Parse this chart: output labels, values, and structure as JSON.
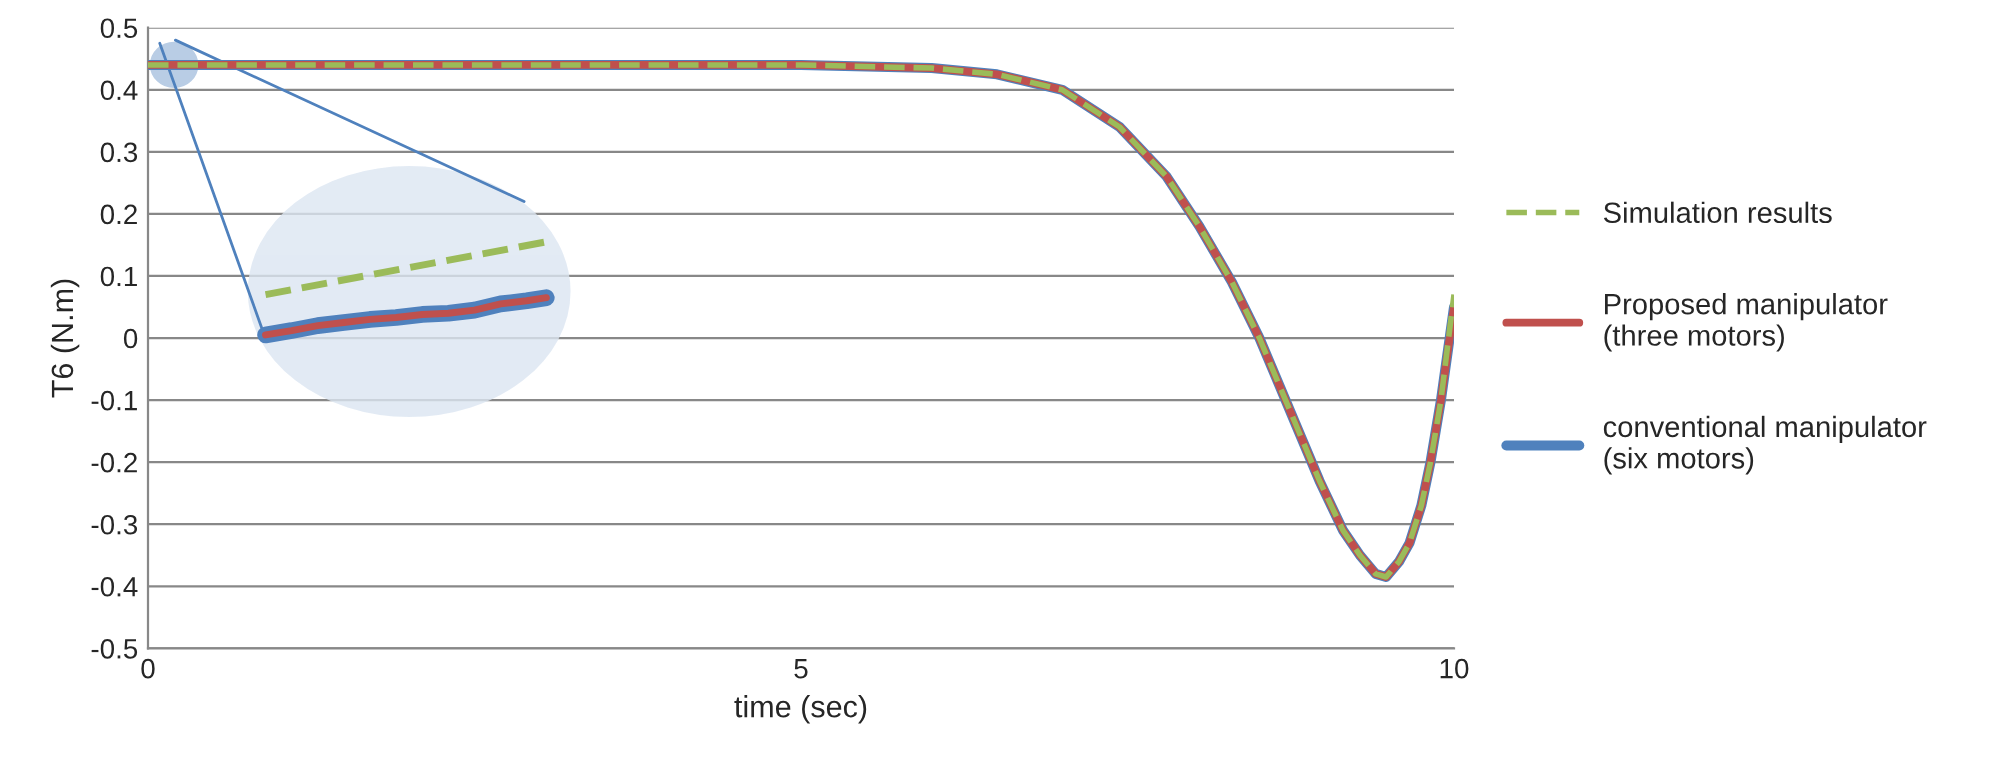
{
  "chart_data": {
    "type": "line",
    "xlabel": "time (sec)",
    "ylabel": "T6 (N.m)",
    "x": [
      0,
      2,
      4,
      5,
      6,
      6.5,
      7,
      7.44,
      7.8,
      8.05,
      8.3,
      8.51,
      8.75,
      8.97,
      9.15,
      9.28,
      9.4,
      9.48,
      9.58,
      9.66,
      9.75,
      9.82,
      9.9,
      10
    ],
    "series": [
      {
        "name": "Simulation results",
        "color": "#9bbb59",
        "line_style": "dashed",
        "values": [
          0.44,
          0.44,
          0.44,
          0.44,
          0.435,
          0.425,
          0.4,
          0.34,
          0.26,
          0.18,
          0.09,
          0.0,
          -0.12,
          -0.23,
          -0.31,
          -0.35,
          -0.38,
          -0.385,
          -0.36,
          -0.33,
          -0.27,
          -0.2,
          -0.1,
          0.07
        ]
      },
      {
        "name": "Proposed manipulator\n(three motors)",
        "color": "#c0504d",
        "line_style": "solid",
        "values": [
          0.44,
          0.44,
          0.44,
          0.44,
          0.435,
          0.425,
          0.4,
          0.34,
          0.26,
          0.18,
          0.09,
          0.0,
          -0.12,
          -0.23,
          -0.31,
          -0.35,
          -0.38,
          -0.385,
          -0.36,
          -0.33,
          -0.27,
          -0.2,
          -0.1,
          0.05
        ]
      },
      {
        "name": "conventional manipulator\n(six motors)",
        "color": "#4f81bd",
        "line_style": "solid",
        "values": [
          0.44,
          0.44,
          0.44,
          0.44,
          0.435,
          0.425,
          0.4,
          0.34,
          0.26,
          0.18,
          0.09,
          0.0,
          -0.12,
          -0.23,
          -0.31,
          -0.35,
          -0.38,
          -0.385,
          -0.36,
          -0.33,
          -0.27,
          -0.2,
          -0.1,
          0.05
        ]
      }
    ],
    "xlim": [
      0,
      10
    ],
    "xticks": [
      0,
      5,
      10
    ],
    "ylim": [
      -0.5,
      0.5
    ],
    "yticks": [
      -0.5,
      -0.4,
      -0.3,
      -0.2,
      -0.1,
      0,
      0.1,
      0.2,
      0.3,
      0.4,
      0.5
    ],
    "grid": "y",
    "legend": "right",
    "marker": "none"
  }
}
